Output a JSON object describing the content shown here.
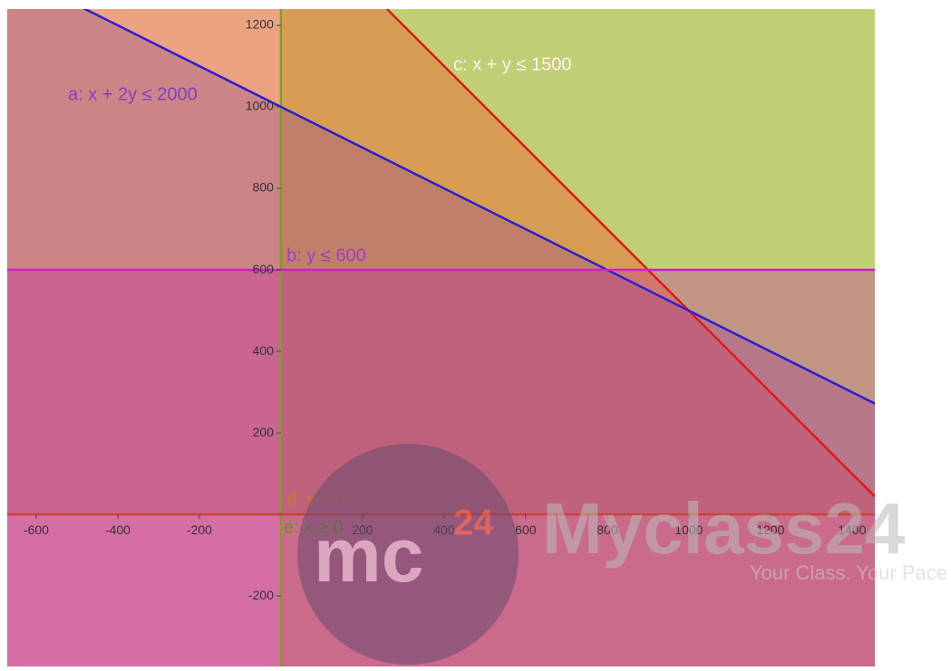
{
  "chart_data": {
    "type": "inequality",
    "xlim": [
      -671,
      1456
    ],
    "ylim": [
      -373,
      1240
    ],
    "xticks": [
      -600,
      -400,
      -200,
      200,
      400,
      600,
      800,
      1000,
      1200,
      1400
    ],
    "yticks": [
      -200,
      200,
      400,
      600,
      800,
      1000,
      1200
    ],
    "series": [
      {
        "name": "e: x ≥ 0",
        "color": "#7aa020",
        "fill": "rgba(190,235,100,0.8)",
        "shade": "right",
        "x": [
          0,
          0
        ],
        "values": [
          -373,
          1240
        ]
      },
      {
        "name": "c: x + y ≤ 1500",
        "color": "#e01818",
        "fill": "rgba(255,130,60,0.55)",
        "shade": "below",
        "x": [
          260,
          1456
        ],
        "values": [
          1240,
          44
        ]
      },
      {
        "name": "a: x + 2y ≤ 2000",
        "color": "#2a1fd0",
        "fill": "rgba(130,60,170,0.3)",
        "shade": "below",
        "x": [
          -671,
          1456
        ],
        "values": [
          1335.5,
          272
        ]
      },
      {
        "name": "b: y ≤ 600",
        "color": "#d020c0",
        "fill": "rgba(205,40,185,0.35)",
        "shade": "below",
        "x": [
          -671,
          1456
        ],
        "values": [
          600,
          600
        ]
      },
      {
        "name": "d: y ≥ 0",
        "color": "#d04030",
        "fill": "rgba(150,60,50,0.18)",
        "shade": "above",
        "x": [
          -671,
          1456
        ],
        "values": [
          0,
          0
        ]
      }
    ]
  },
  "watermark": {
    "logo": "mc",
    "logo_sup": "24",
    "brand": "Myclass24",
    "tagline": "Your Class. Your Pace"
  }
}
